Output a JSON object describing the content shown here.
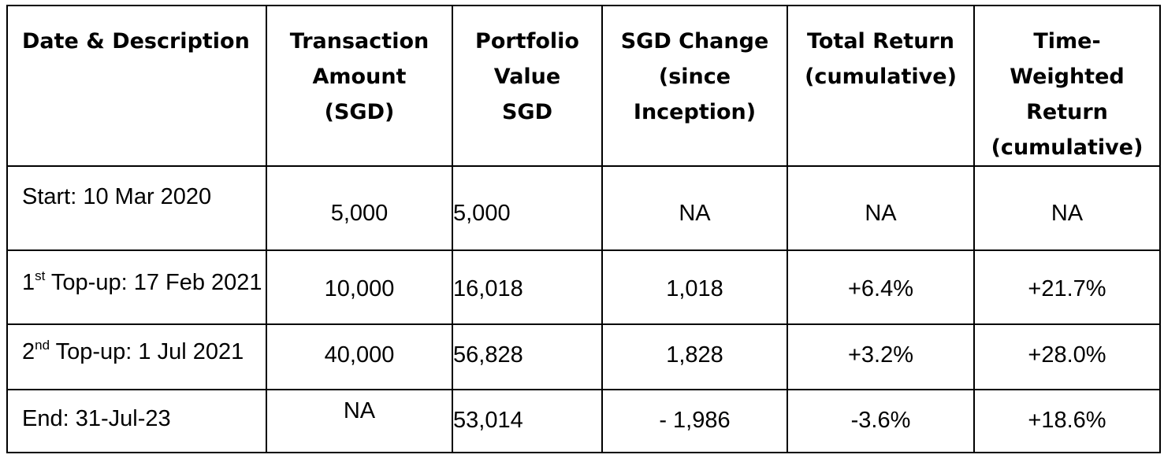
{
  "table": {
    "headers": [
      [
        "Date & Description"
      ],
      [
        "Transaction",
        "Amount",
        "(SGD)"
      ],
      [
        "Portfolio",
        "Value",
        "SGD"
      ],
      [
        "SGD Change",
        "(since",
        "Inception)"
      ],
      [
        "Total Return",
        "(cumulative)"
      ],
      [
        "Time-",
        "Weighted",
        "Return",
        "(cumulative)"
      ]
    ],
    "rows": [
      {
        "description": "Start: 10 Mar 2020",
        "transaction_amount": "5,000",
        "portfolio_value": "5,000",
        "sgd_change": "NA",
        "total_return": "NA",
        "time_weighted_return": "NA"
      },
      {
        "description_prefix": "1",
        "description_ordinal": "st",
        "description": " Top-up: 17 Feb 2021",
        "transaction_amount": "10,000",
        "portfolio_value": "16,018",
        "sgd_change": "1,018",
        "total_return": "+6.4%",
        "time_weighted_return": "+21.7%"
      },
      {
        "description_prefix": "2",
        "description_ordinal": "nd",
        "description": " Top-up: 1 Jul 2021",
        "transaction_amount": "40,000",
        "portfolio_value": "56,828",
        "sgd_change": "1,828",
        "total_return": "+3.2%",
        "time_weighted_return": "+28.0%"
      },
      {
        "description": "End: 31-Jul-23",
        "transaction_amount": "NA",
        "portfolio_value": "53,014",
        "sgd_change": "- 1,986",
        "total_return": "-3.6%",
        "time_weighted_return": "+18.6%"
      }
    ]
  },
  "colors": {
    "text": "#000000",
    "negative": "#e8141b",
    "border": "#000000",
    "background": "#ffffff"
  }
}
